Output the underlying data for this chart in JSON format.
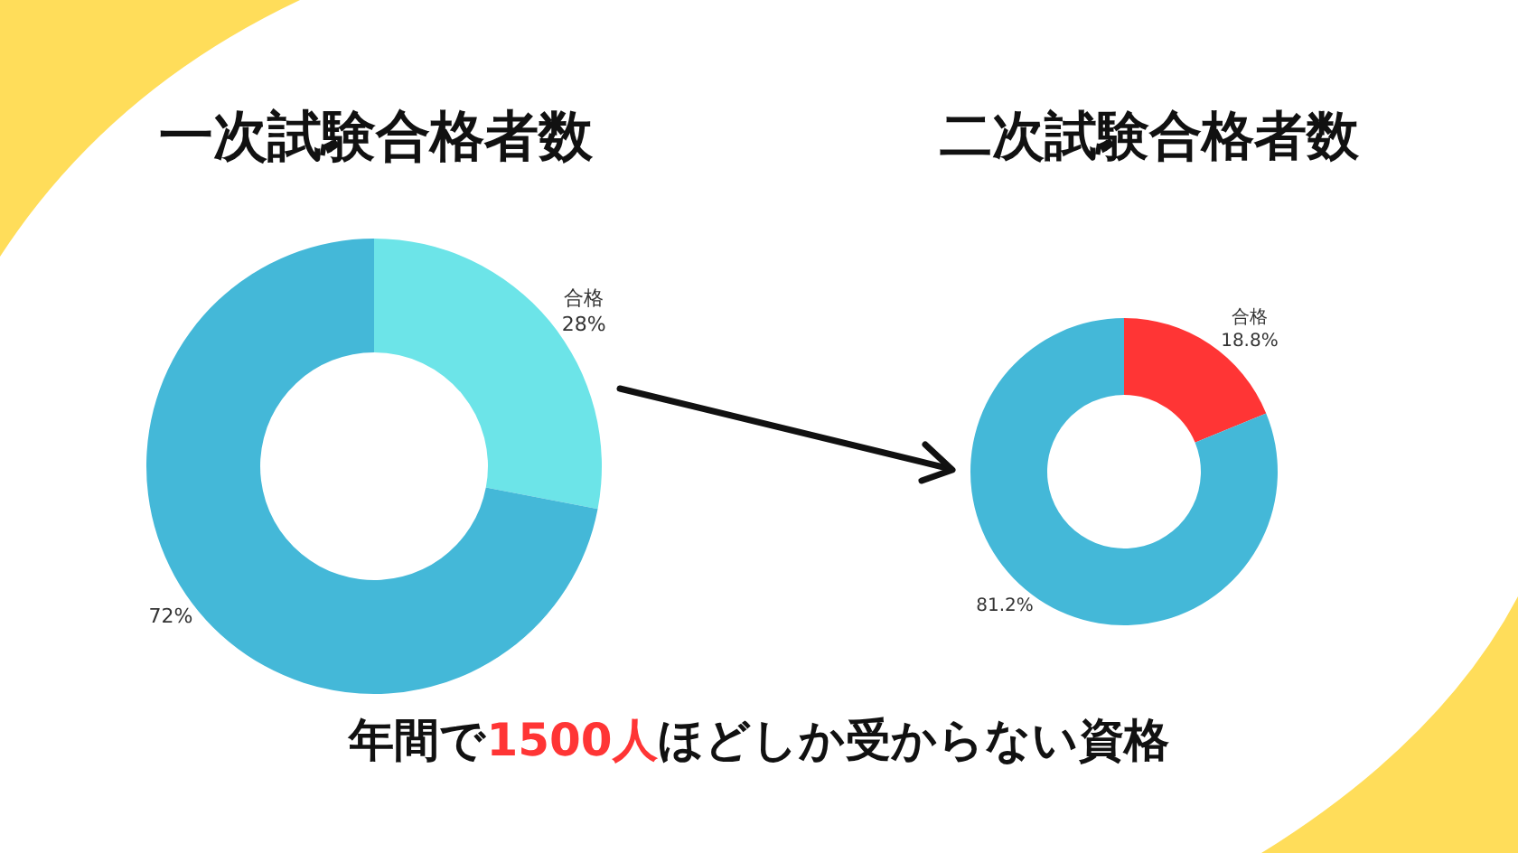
{
  "chart_data": [
    {
      "type": "donut",
      "title": "一次試験合格者数",
      "categories": [
        "合格",
        null
      ],
      "values": [
        28,
        72
      ],
      "colors": [
        "#6ce4e8",
        "#44b8d8"
      ],
      "value_labels": [
        "28%",
        "72%"
      ]
    },
    {
      "type": "donut",
      "title": "二次試験合格者数",
      "categories": [
        "合格",
        null
      ],
      "values": [
        18.8,
        81.2
      ],
      "colors": [
        "#ff3535",
        "#44b8d8"
      ],
      "value_labels": [
        "18.8%",
        "81.2%"
      ],
      "annotations": [
        "年間で1500人ほどしか受からない資格"
      ]
    }
  ]
}
